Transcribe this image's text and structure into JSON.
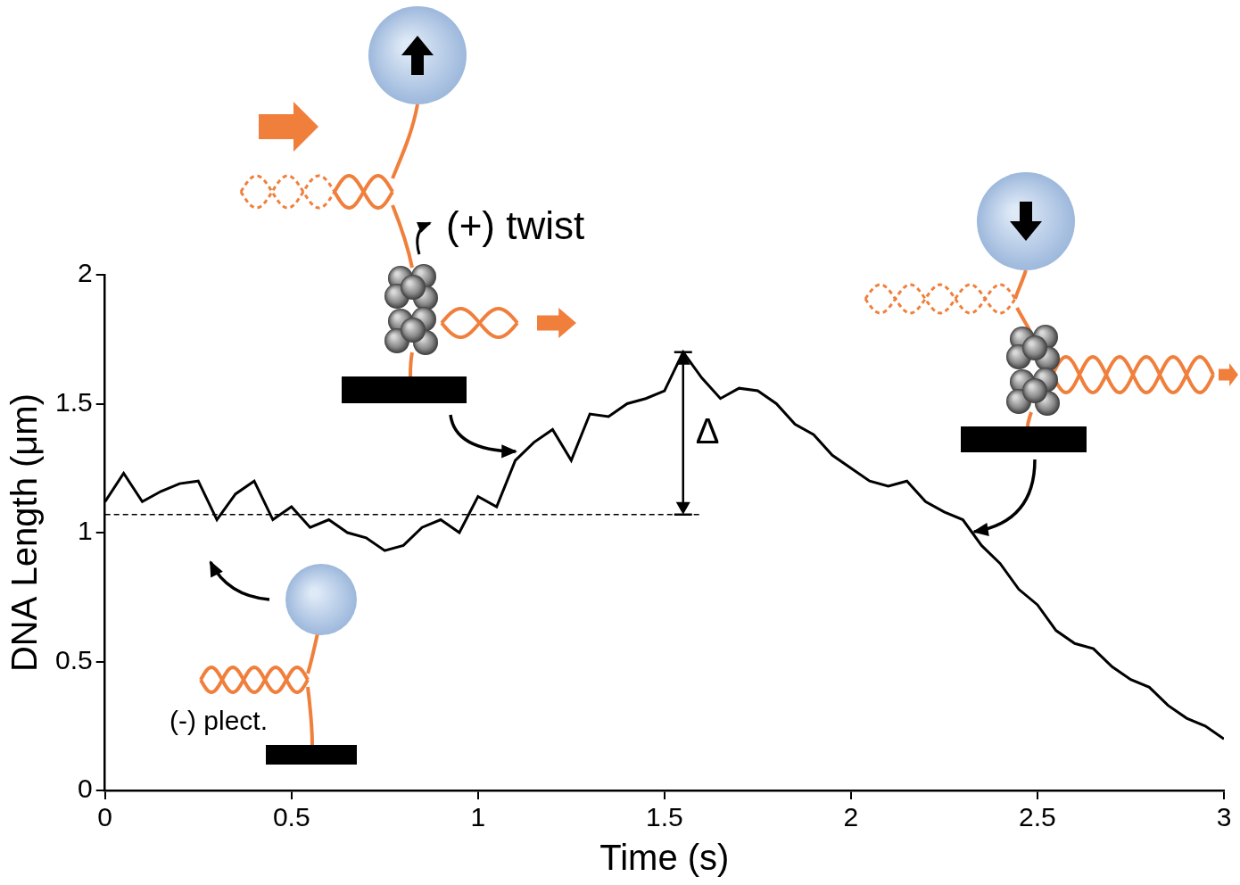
{
  "chart_data": {
    "type": "line",
    "x_label": "Time (s)",
    "y_label": "DNA Length (μm)",
    "x": [
      0,
      0.05,
      0.1,
      0.15,
      0.2,
      0.25,
      0.3,
      0.35,
      0.4,
      0.45,
      0.5,
      0.55,
      0.6,
      0.65,
      0.7,
      0.75,
      0.8,
      0.85,
      0.9,
      0.95,
      1.0,
      1.05,
      1.1,
      1.15,
      1.2,
      1.25,
      1.3,
      1.35,
      1.4,
      1.45,
      1.5,
      1.55,
      1.6,
      1.65,
      1.7,
      1.75,
      1.8,
      1.85,
      1.9,
      1.95,
      2.0,
      2.05,
      2.1,
      2.15,
      2.2,
      2.25,
      2.3,
      2.35,
      2.4,
      2.45,
      2.5,
      2.55,
      2.6,
      2.65,
      2.7,
      2.75,
      2.8,
      2.85,
      2.9,
      2.95,
      3.0
    ],
    "values": [
      1.12,
      1.23,
      1.12,
      1.16,
      1.19,
      1.2,
      1.05,
      1.15,
      1.2,
      1.05,
      1.1,
      1.02,
      1.05,
      1.0,
      0.98,
      0.93,
      0.95,
      1.02,
      1.05,
      1.0,
      1.14,
      1.1,
      1.28,
      1.35,
      1.4,
      1.28,
      1.46,
      1.45,
      1.5,
      1.52,
      1.55,
      1.7,
      1.6,
      1.52,
      1.56,
      1.55,
      1.5,
      1.42,
      1.38,
      1.3,
      1.25,
      1.2,
      1.18,
      1.2,
      1.12,
      1.08,
      1.05,
      0.95,
      0.88,
      0.78,
      0.72,
      0.62,
      0.57,
      0.55,
      0.48,
      0.43,
      0.4,
      0.33,
      0.28,
      0.25,
      0.2
    ],
    "color": "#000000",
    "xlim": [
      0,
      3
    ],
    "xticks": [
      0,
      0.5,
      1,
      1.5,
      2,
      2.5,
      3
    ],
    "ylim": [
      0,
      2
    ],
    "yticks": [
      0,
      0.5,
      1,
      1.5,
      2
    ],
    "grid": false,
    "reference_line": {
      "y": 1.07,
      "x": [
        0,
        1.6
      ]
    },
    "delta": {
      "label": "Δ",
      "x": 1.55,
      "from": 1.07,
      "to": 1.7
    },
    "annotations": [
      "(+) twist",
      "(-) plect."
    ]
  }
}
